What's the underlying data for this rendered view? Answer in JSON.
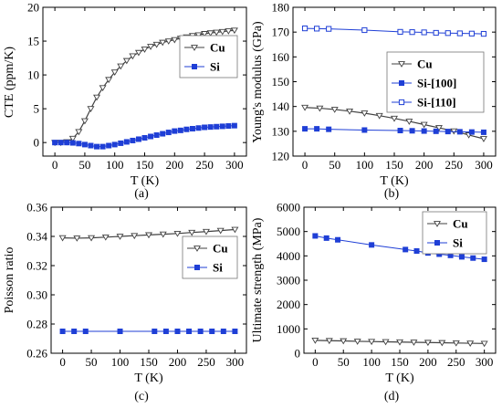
{
  "colors": {
    "cu": "#404040",
    "si": "#1f3fd6",
    "axis": "#000000",
    "legend_border": "#777777"
  },
  "chart_data": [
    {
      "type": "line",
      "panel_label": "(a)",
      "xlabel": "T (K)",
      "ylabel": "CTE (ppm/K)",
      "xlim": [
        -20,
        320
      ],
      "ylim": [
        -2,
        20
      ],
      "xticks": [
        0,
        50,
        100,
        150,
        200,
        250,
        300
      ],
      "yticks": [
        0,
        5,
        10,
        15,
        20
      ],
      "legend_position": "top-right",
      "series": [
        {
          "name": "Cu",
          "marker": "triangle-down-open",
          "color": "#404040",
          "x": [
            0,
            10,
            20,
            30,
            40,
            50,
            60,
            70,
            80,
            90,
            100,
            110,
            120,
            130,
            140,
            150,
            160,
            170,
            180,
            190,
            200,
            210,
            220,
            230,
            240,
            250,
            260,
            270,
            280,
            290,
            300
          ],
          "y": [
            0,
            0,
            0.1,
            0.6,
            1.6,
            3.2,
            5.0,
            6.7,
            8.1,
            9.3,
            10.4,
            11.3,
            12.1,
            12.8,
            13.3,
            13.8,
            14.2,
            14.5,
            14.8,
            15.0,
            15.2,
            15.4,
            15.6,
            15.8,
            15.9,
            16.1,
            16.2,
            16.3,
            16.4,
            16.5,
            16.6
          ]
        },
        {
          "name": "Si",
          "marker": "square-filled",
          "color": "#1f3fd6",
          "x": [
            0,
            10,
            20,
            30,
            40,
            50,
            60,
            70,
            80,
            90,
            100,
            110,
            120,
            130,
            140,
            150,
            160,
            170,
            180,
            190,
            200,
            210,
            220,
            230,
            240,
            250,
            260,
            270,
            280,
            290,
            300
          ],
          "y": [
            0,
            0,
            0,
            -0.05,
            -0.15,
            -0.3,
            -0.45,
            -0.6,
            -0.6,
            -0.45,
            -0.3,
            -0.1,
            0.1,
            0.3,
            0.5,
            0.7,
            0.9,
            1.1,
            1.3,
            1.5,
            1.7,
            1.8,
            1.95,
            2.05,
            2.15,
            2.25,
            2.3,
            2.35,
            2.4,
            2.45,
            2.5
          ]
        }
      ]
    },
    {
      "type": "line",
      "panel_label": "(b)",
      "xlabel": "T (K)",
      "ylabel": "Young's modulus (GPa)",
      "xlim": [
        -20,
        320
      ],
      "ylim": [
        120,
        180
      ],
      "xticks": [
        0,
        50,
        100,
        150,
        200,
        250,
        300
      ],
      "yticks": [
        120,
        130,
        140,
        150,
        160,
        170,
        180
      ],
      "legend_position": "right",
      "series": [
        {
          "name": "Cu",
          "marker": "triangle-down-open",
          "color": "#404040",
          "x": [
            0,
            25,
            50,
            75,
            100,
            125,
            150,
            175,
            200,
            225,
            250,
            275,
            300
          ],
          "y": [
            139.6,
            139.3,
            138.8,
            138.1,
            137.3,
            136.3,
            135.2,
            134.0,
            132.7,
            131.4,
            130.1,
            128.5,
            127.0
          ]
        },
        {
          "name": "Si-[100]",
          "marker": "square-filled",
          "color": "#1f3fd6",
          "x": [
            0,
            20,
            40,
            100,
            160,
            180,
            200,
            220,
            240,
            260,
            280,
            300
          ],
          "y": [
            131,
            131,
            130.8,
            130.5,
            130.3,
            130.2,
            130.1,
            130.0,
            129.9,
            129.8,
            129.7,
            129.6
          ]
        },
        {
          "name": "Si-[110]",
          "marker": "square-open",
          "color": "#1f3fd6",
          "x": [
            0,
            20,
            40,
            100,
            160,
            180,
            200,
            220,
            240,
            260,
            280,
            300
          ],
          "y": [
            171.5,
            171.4,
            171.3,
            170.8,
            170.1,
            170.0,
            169.9,
            169.7,
            169.6,
            169.5,
            169.4,
            169.3
          ]
        }
      ]
    },
    {
      "type": "line",
      "panel_label": "(c)",
      "xlabel": "T (K)",
      "ylabel": "Poisson ratio",
      "xlim": [
        -20,
        320
      ],
      "ylim": [
        0.26,
        0.36
      ],
      "xticks": [
        0,
        50,
        100,
        150,
        200,
        250,
        300
      ],
      "yticks": [
        0.26,
        0.28,
        0.3,
        0.32,
        0.34,
        0.36
      ],
      "ytick_labels": [
        "0.26",
        "0.28",
        "0.30",
        "0.32",
        "0.34",
        "0.36"
      ],
      "legend_position": "right",
      "series": [
        {
          "name": "Cu",
          "marker": "triangle-down-open",
          "color": "#404040",
          "x": [
            0,
            25,
            50,
            75,
            100,
            125,
            150,
            175,
            200,
            225,
            250,
            275,
            300
          ],
          "y": [
            0.339,
            0.3388,
            0.339,
            0.3395,
            0.34,
            0.3405,
            0.341,
            0.3415,
            0.342,
            0.3427,
            0.3433,
            0.344,
            0.3447
          ]
        },
        {
          "name": "Si",
          "marker": "square-filled",
          "color": "#1f3fd6",
          "x": [
            0,
            20,
            40,
            100,
            160,
            180,
            200,
            220,
            240,
            260,
            280,
            300
          ],
          "y": [
            0.275,
            0.275,
            0.275,
            0.275,
            0.275,
            0.275,
            0.275,
            0.275,
            0.275,
            0.275,
            0.275,
            0.275
          ]
        }
      ]
    },
    {
      "type": "line",
      "panel_label": "(d)",
      "xlabel": "T (K)",
      "ylabel": "Ultimate strength (MPa)",
      "xlim": [
        -20,
        320
      ],
      "ylim": [
        0,
        6000
      ],
      "xticks": [
        0,
        50,
        100,
        150,
        200,
        250,
        300
      ],
      "yticks": [
        0,
        1000,
        2000,
        3000,
        4000,
        5000,
        6000
      ],
      "legend_position": "top-right",
      "series": [
        {
          "name": "Cu",
          "marker": "triangle-down-open",
          "color": "#404040",
          "x": [
            0,
            25,
            50,
            75,
            100,
            125,
            150,
            175,
            200,
            225,
            250,
            275,
            300
          ],
          "y": [
            530,
            515,
            505,
            490,
            480,
            470,
            460,
            450,
            440,
            430,
            420,
            410,
            400
          ]
        },
        {
          "name": "Si",
          "marker": "square-filled",
          "color": "#1f3fd6",
          "x": [
            0,
            20,
            40,
            100,
            160,
            180,
            200,
            220,
            240,
            260,
            280,
            300
          ],
          "y": [
            4820,
            4730,
            4660,
            4450,
            4260,
            4200,
            4120,
            4070,
            4020,
            3960,
            3910,
            3860
          ]
        }
      ]
    }
  ]
}
